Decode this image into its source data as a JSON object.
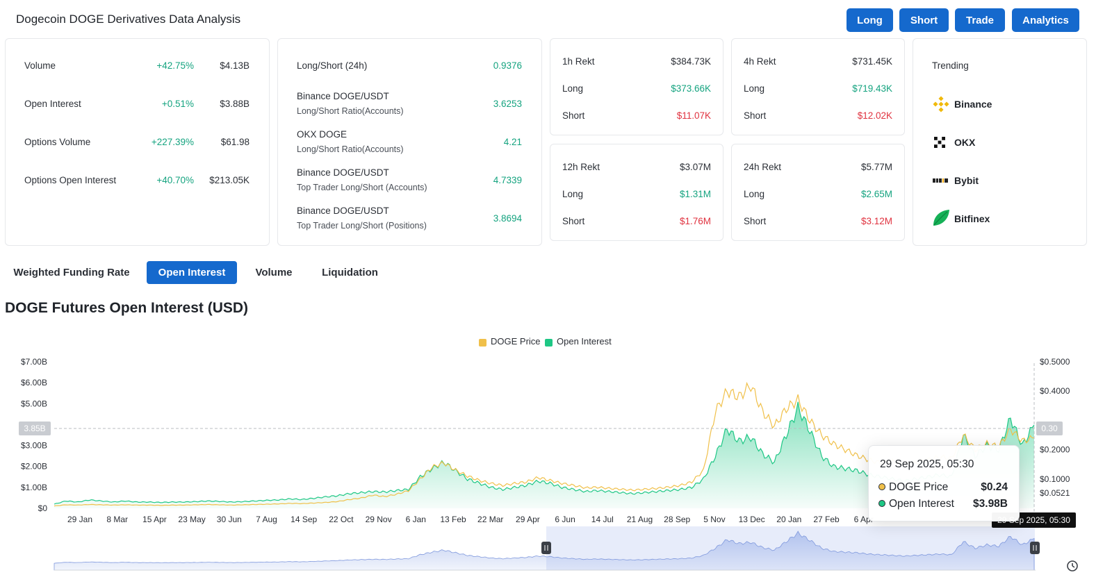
{
  "header": {
    "title": "Dogecoin DOGE Derivatives Data Analysis",
    "buttons": [
      "Long",
      "Short",
      "Trade",
      "Analytics"
    ]
  },
  "stats": [
    {
      "label": "Volume",
      "change": "+42.75%",
      "value": "$4.13B"
    },
    {
      "label": "Open Interest",
      "change": "+0.51%",
      "value": "$3.88B"
    },
    {
      "label": "Options Volume",
      "change": "+227.39%",
      "value": "$61.98"
    },
    {
      "label": "Options Open Interest",
      "change": "+40.70%",
      "value": "$213.05K"
    }
  ],
  "ratios": {
    "top": {
      "label": "Long/Short (24h)",
      "value": "0.9376"
    },
    "items": [
      {
        "label": "Binance DOGE/USDT",
        "sub": "Long/Short Ratio(Accounts)",
        "value": "3.6253"
      },
      {
        "label": "OKX DOGE",
        "sub": "Long/Short Ratio(Accounts)",
        "value": "4.21"
      },
      {
        "label": "Binance DOGE/USDT",
        "sub": "Top Trader Long/Short (Accounts)",
        "value": "4.7339"
      },
      {
        "label": "Binance DOGE/USDT",
        "sub": "Top Trader Long/Short (Positions)",
        "value": "3.8694"
      }
    ]
  },
  "rekt": [
    {
      "label": "1h Rekt",
      "total": "$384.73K",
      "long_label": "Long",
      "long": "$373.66K",
      "short_label": "Short",
      "short": "$11.07K"
    },
    {
      "label": "4h Rekt",
      "total": "$731.45K",
      "long_label": "Long",
      "long": "$719.43K",
      "short_label": "Short",
      "short": "$12.02K"
    },
    {
      "label": "12h Rekt",
      "total": "$3.07M",
      "long_label": "Long",
      "long": "$1.31M",
      "short_label": "Short",
      "short": "$1.76M"
    },
    {
      "label": "24h Rekt",
      "total": "$5.77M",
      "long_label": "Long",
      "long": "$2.65M",
      "short_label": "Short",
      "short": "$3.12M"
    }
  ],
  "trending": {
    "title": "Trending",
    "items": [
      "Binance",
      "OKX",
      "Bybit",
      "Bitfinex"
    ]
  },
  "tabs": [
    "Weighted Funding Rate",
    "Open Interest",
    "Volume",
    "Liquidation"
  ],
  "active_tab": "Open Interest",
  "tooltip": {
    "date": "29 Sep 2025, 05:30",
    "rows": [
      {
        "label": "DOGE Price",
        "value": "$0.24"
      },
      {
        "label": "Open Interest",
        "value": "$3.98B"
      }
    ]
  },
  "crosshair": {
    "left_badge": "3.85B",
    "right_badge": "0.30",
    "x_badge": "29 Sep 2025, 05:30"
  },
  "colors": {
    "accent": "#1569cd",
    "green": "#14a37f",
    "red": "#e0323f",
    "price": "#f0b90b",
    "oi": "#1ec785"
  },
  "chart_data": {
    "type": "area",
    "title": "DOGE Futures Open Interest (USD)",
    "legend": [
      "DOGE Price",
      "Open Interest"
    ],
    "legend_position": "top-center",
    "y_left_ticks": [
      "$7.00B",
      "$6.00B",
      "$5.00B",
      "$3.00B",
      "$2.00B",
      "$1.00B",
      "$0"
    ],
    "y_right_ticks": [
      "$0.5000",
      "$0.4000",
      "$0.2000",
      "$0.1000",
      "$0.0521"
    ],
    "x_ticks": [
      "29 Jan",
      "8 Mar",
      "15 Apr",
      "23 May",
      "30 Jun",
      "7 Aug",
      "14 Sep",
      "22 Oct",
      "29 Nov",
      "6 Jan",
      "13 Feb",
      "22 Mar",
      "29 Apr",
      "6 Jun",
      "14 Jul",
      "21 Aug",
      "28 Sep",
      "5 Nov",
      "13 Dec",
      "20 Jan",
      "27 Feb",
      "6 Apr"
    ],
    "ylim_left": [
      0,
      7
    ],
    "ylim_right": [
      0,
      0.5
    ],
    "series": [
      {
        "name": "Open Interest",
        "unit": "B USD",
        "values": [
          0.2,
          0.35,
          0.3,
          0.4,
          0.35,
          0.3,
          0.35,
          0.3,
          0.3,
          0.28,
          0.3,
          0.3,
          0.32,
          0.35,
          0.33,
          0.3,
          0.32,
          0.35,
          0.38,
          0.4,
          0.45,
          0.42,
          0.48,
          0.55,
          0.6,
          0.7,
          0.75,
          0.8,
          0.78,
          0.85,
          0.9,
          1.5,
          1.9,
          2.2,
          1.8,
          1.4,
          1.2,
          1.0,
          0.9,
          1.0,
          1.1,
          1.3,
          1.2,
          1.0,
          0.9,
          0.8,
          0.85,
          0.8,
          0.75,
          0.7,
          0.75,
          0.8,
          0.85,
          0.9,
          1.0,
          1.4,
          2.5,
          3.8,
          3.2,
          3.4,
          2.6,
          2.2,
          3.5,
          4.8,
          3.7,
          2.5,
          2.0,
          1.9,
          1.8,
          1.6,
          1.5,
          1.4,
          1.3,
          1.4,
          1.5,
          1.6,
          1.5,
          3.5,
          2.5,
          3.0,
          2.8,
          4.3,
          3.0,
          3.98
        ]
      },
      {
        "name": "DOGE Price",
        "unit": "USD",
        "values": [
          0.008,
          0.012,
          0.011,
          0.013,
          0.012,
          0.011,
          0.012,
          0.011,
          0.011,
          0.01,
          0.011,
          0.011,
          0.012,
          0.013,
          0.012,
          0.011,
          0.012,
          0.013,
          0.014,
          0.015,
          0.017,
          0.016,
          0.018,
          0.02,
          0.023,
          0.03,
          0.035,
          0.045,
          0.04,
          0.048,
          0.06,
          0.1,
          0.14,
          0.155,
          0.13,
          0.11,
          0.095,
          0.085,
          0.078,
          0.085,
          0.09,
          0.105,
          0.095,
          0.085,
          0.078,
          0.07,
          0.072,
          0.068,
          0.065,
          0.062,
          0.065,
          0.068,
          0.072,
          0.078,
          0.09,
          0.13,
          0.33,
          0.4,
          0.38,
          0.42,
          0.33,
          0.28,
          0.34,
          0.37,
          0.3,
          0.25,
          0.22,
          0.2,
          0.18,
          0.165,
          0.155,
          0.16,
          0.15,
          0.155,
          0.165,
          0.175,
          0.17,
          0.25,
          0.2,
          0.22,
          0.21,
          0.27,
          0.23,
          0.24
        ]
      }
    ]
  }
}
